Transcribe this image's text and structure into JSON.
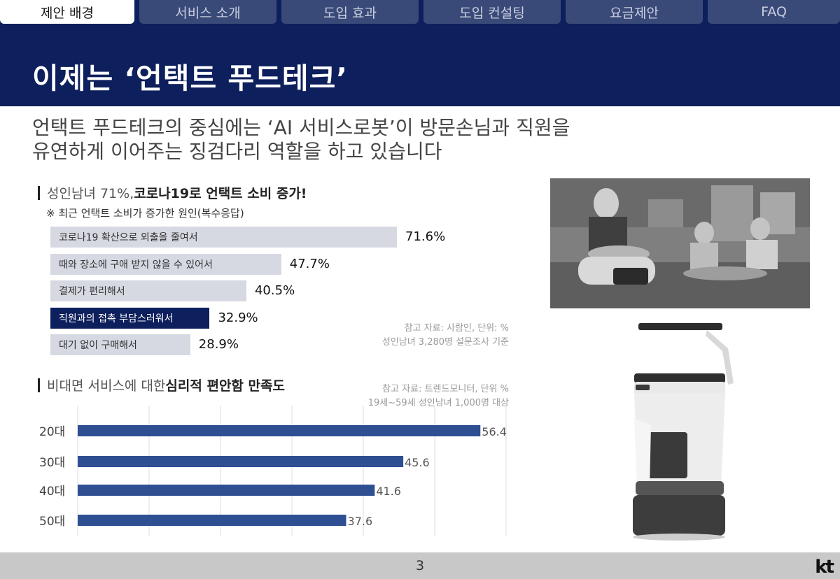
{
  "nav": {
    "tabs": [
      {
        "label": "제안 배경",
        "active": true
      },
      {
        "label": "서비스 소개",
        "active": false
      },
      {
        "label": "도입 효과",
        "active": false
      },
      {
        "label": "도입 컨설팅",
        "active": false
      },
      {
        "label": "요금제안",
        "active": false
      },
      {
        "label": "FAQ",
        "active": false
      }
    ]
  },
  "header": {
    "title": "이제는 ‘언택트 푸드테크’"
  },
  "lead": {
    "line1": "언택트 푸드테크의 중심에는 ‘AI 서비스로봇’이 방문손님과 직원을",
    "line2": "유연하게 이어주는 징검다리 역할을 하고 있습니다"
  },
  "section1": {
    "title_light": "성인남녀 71%, ",
    "title_bold": "코로나19로 언택트 소비 증가!",
    "note": "※ 최근 언택트 소비가 증가한 원인(복수응답)",
    "source_line1": "참고 자료: 사람인, 단위: %",
    "source_line2": "성인남녀 3,280명 설문조사 기준"
  },
  "section2": {
    "title_light": "비대면 서비스에 대한 ",
    "title_bold": "심리적 편안함 만족도",
    "source_line1": "참고 자료: 트렌드모니터, 단위 %",
    "source_line2": "19세~59세 성인남녀 1,000명 대상"
  },
  "chart_data": [
    {
      "type": "bar",
      "orientation": "horizontal",
      "categories": [
        "코로나19 확산으로 외출을 줄여서",
        "때와 장소에 구애 받지 않을 수 있어서",
        "결제가 편리해서",
        "직원과의 접촉 부담스러워서",
        "대기 없이 구매해서"
      ],
      "values": [
        71.6,
        47.7,
        40.5,
        32.9,
        28.9
      ],
      "value_labels": [
        "71.6%",
        "47.7%",
        "40.5%",
        "32.9%",
        "28.9%"
      ],
      "highlight_index": 3,
      "colors": {
        "default": "#d6d9e2",
        "highlight": "#0d1f5c"
      }
    },
    {
      "type": "bar",
      "orientation": "horizontal",
      "categories": [
        "20대",
        "30대",
        "40대",
        "50대"
      ],
      "values": [
        56.4,
        45.6,
        41.6,
        37.6
      ],
      "xlim": [
        0,
        60
      ],
      "grid": true,
      "color": "#2f4f93"
    }
  ],
  "footer": {
    "page": "3",
    "logo": "kt"
  }
}
